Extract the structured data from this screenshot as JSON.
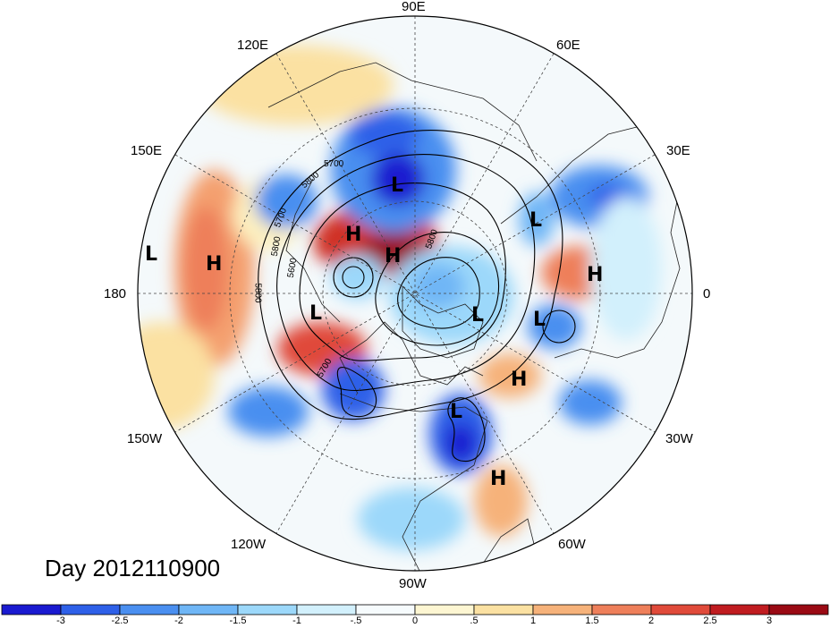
{
  "title": "Day 2012110900",
  "longitude_labels": [
    "90E",
    "120E",
    "60E",
    "150E",
    "30E",
    "180",
    "0",
    "150W",
    "30W",
    "120W",
    "60W",
    "90W"
  ],
  "contour_labels": [
    "5700",
    "5800",
    "5700",
    "5800",
    "5600",
    "5800",
    "5700",
    "5800"
  ],
  "systems": [
    {
      "type": "L",
      "name": "low-siberia"
    },
    {
      "type": "H",
      "name": "high-arctic-east"
    },
    {
      "type": "H",
      "name": "high-arctic-center"
    },
    {
      "type": "L",
      "name": "low-ural"
    },
    {
      "type": "L",
      "name": "low-dateline"
    },
    {
      "type": "H",
      "name": "high-pacific"
    },
    {
      "type": "H",
      "name": "high-europe"
    },
    {
      "type": "L",
      "name": "low-alaska"
    },
    {
      "type": "L",
      "name": "low-greenland"
    },
    {
      "type": "L",
      "name": "low-iceland"
    },
    {
      "type": "H",
      "name": "high-north-atlantic"
    },
    {
      "type": "L",
      "name": "low-eastern-canada"
    },
    {
      "type": "H",
      "name": "high-caribbean"
    }
  ],
  "colorbar": {
    "colors": [
      "#1a1ad0",
      "#2e60e8",
      "#4a8ff0",
      "#6fb6f6",
      "#9cd8fa",
      "#d2f0fc",
      "#f6fbfd",
      "#fdf6d2",
      "#fbe1a2",
      "#f6b27a",
      "#ee7f5a",
      "#e04a3a",
      "#c01c20",
      "#9a0a14"
    ],
    "ticks": [
      "-3",
      "-2.5",
      "-2",
      "-1.5",
      "-1",
      "-.5",
      "0",
      ".5",
      "1",
      "1.5",
      "2",
      "2.5",
      "3"
    ]
  }
}
